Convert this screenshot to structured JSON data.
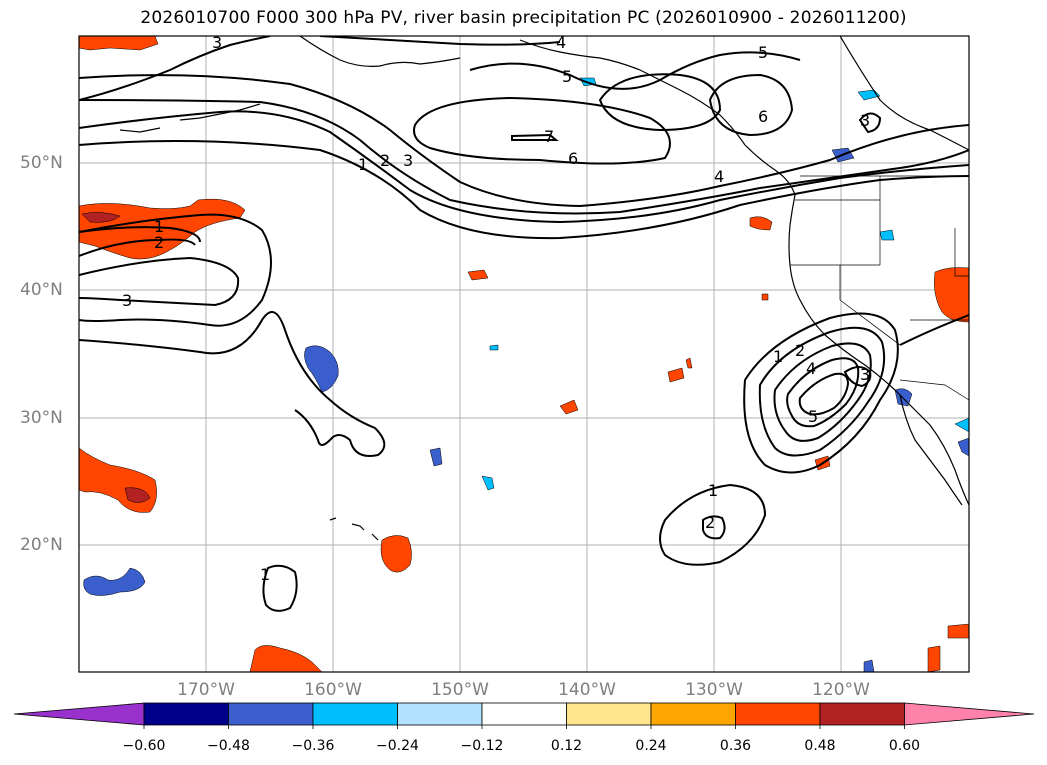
{
  "title": "2026010700 F000 300 hPa PV, river basin precipitation PC (2026010900 - 2026011200)",
  "axes": {
    "lat_ticks": [
      "50°N",
      "40°N",
      "30°N",
      "20°N"
    ],
    "lon_ticks": [
      "170°W",
      "160°W",
      "150°W",
      "140°W",
      "130°W",
      "120°W"
    ]
  },
  "contour_labels": [
    "3",
    "4",
    "5",
    "5",
    "6",
    "6",
    "7",
    "1",
    "2",
    "3",
    "4",
    "1",
    "2",
    "3",
    "3",
    "1",
    "2",
    "4",
    "5",
    "3",
    "1",
    "2",
    "1"
  ],
  "colorbar": {
    "ticks": [
      "−0.60",
      "−0.48",
      "−0.36",
      "−0.24",
      "−0.12",
      "0.12",
      "0.24",
      "0.36",
      "0.48",
      "0.60"
    ],
    "colors": [
      "#9932cc",
      "#00008b",
      "#3a5fcd",
      "#00bfff",
      "#b0e2ff",
      "#ffffff",
      "#ffe68c",
      "#ffa500",
      "#ff4500",
      "#b22222",
      "#ff82ab"
    ]
  },
  "fill_colors": {
    "orange": "#ff4500",
    "dark_red": "#b22222",
    "yellow": "#ffe68c",
    "blue": "#3a5fcd",
    "cyan": "#00bfff",
    "navy": "#00008b"
  }
}
